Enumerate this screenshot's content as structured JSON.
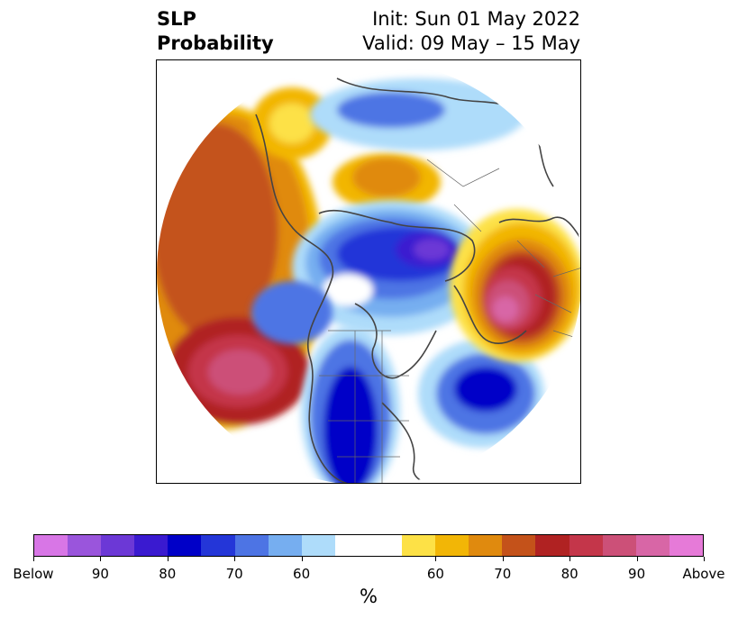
{
  "title": {
    "line1": "SLP",
    "line2": "Probability"
  },
  "subtitle": {
    "init": "Init: Sun 01 May 2022",
    "valid": "Valid: 09 May – 15 May"
  },
  "colorbar": {
    "colors": [
      "#d876e6",
      "#9a55dc",
      "#6c38d6",
      "#3a1ad0",
      "#0000c8",
      "#2436d8",
      "#4d74e4",
      "#76aef0",
      "#aedcfa",
      "#ffffff",
      "#ffffff",
      "#fde146",
      "#f2b606",
      "#e08a0e",
      "#c4521a",
      "#b02222",
      "#c4364a",
      "#cc5078",
      "#d866a6",
      "#e67ad8"
    ],
    "labels": [
      "Below",
      "90",
      "80",
      "70",
      "60",
      "60",
      "70",
      "80",
      "90",
      "Above"
    ],
    "unit": "%"
  },
  "map": {
    "projection": "polar stereographic",
    "region": "Northern Hemisphere",
    "features": [
      "probability-shading",
      "coastlines",
      "country-borders"
    ]
  }
}
